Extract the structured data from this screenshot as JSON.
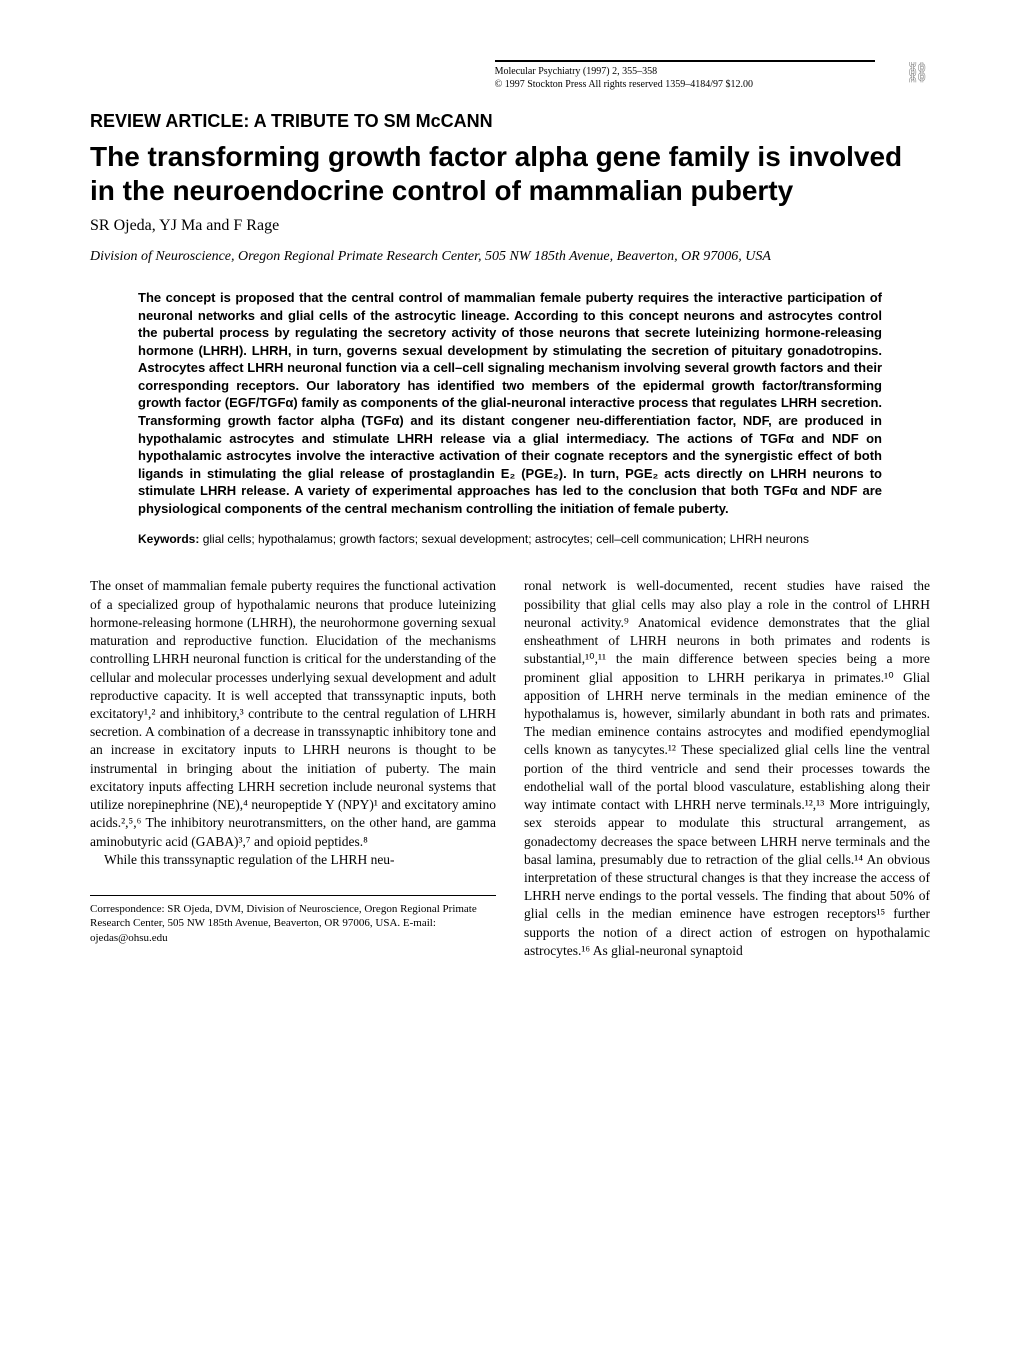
{
  "header": {
    "journal": "Molecular Psychiatry (1997) 2, 355–358",
    "copyright": "© 1997 Stockton Press  All rights reserved 1359–4184/97 $12.00"
  },
  "section_label": "REVIEW ARTICLE: A TRIBUTE TO SM McCANN",
  "title": "The transforming growth factor alpha gene family is involved in the neuroendocrine control of mammalian puberty",
  "authors": "SR Ojeda, YJ Ma and F Rage",
  "affiliation": "Division of Neuroscience, Oregon Regional Primate Research Center, 505 NW 185th Avenue, Beaverton, OR 97006, USA",
  "abstract": "The concept is proposed that the central control of mammalian female puberty requires the interactive participation of neuronal networks and glial cells of the astrocytic lineage. According to this concept neurons and astrocytes control the pubertal process by regulating the secretory activity of those neurons that secrete luteinizing hormone-releasing hormone (LHRH). LHRH, in turn, governs sexual development by stimulating the secretion of pituitary gonadotropins. Astrocytes affect LHRH neuronal function via a cell–cell signaling mechanism involving several growth factors and their corresponding receptors. Our laboratory has identified two members of the epidermal growth factor/transforming growth factor (EGF/TGFα) family as components of the glial-neuronal interactive process that regulates LHRH secretion. Transforming growth factor alpha (TGFα) and its distant congener neu-differentiation factor, NDF, are produced in hypothalamic astrocytes and stimulate LHRH release via a glial intermediacy. The actions of TGFα and NDF on hypothalamic astrocytes involve the interactive activation of their cognate receptors and the synergistic effect of both ligands in stimulating the glial release of prostaglandin E₂ (PGE₂). In turn, PGE₂ acts directly on LHRH neurons to stimulate LHRH release. A variety of experimental approaches has led to the conclusion that both TGFα and NDF are physiological components of the central mechanism controlling the initiation of female puberty.",
  "keywords_label": "Keywords:",
  "keywords": " glial cells; hypothalamus; growth factors; sexual development; astrocytes; cell–cell communication; LHRH neurons",
  "body_left_p1": "The onset of mammalian female puberty requires the functional activation of a specialized group of hypothalamic neurons that produce luteinizing hormone-releasing hormone (LHRH), the neurohormone governing sexual maturation and reproductive function. Elucidation of the mechanisms controlling LHRH neuronal function is critical for the understanding of the cellular and molecular processes underlying sexual development and adult reproductive capacity. It is well accepted that transsynaptic inputs, both excitatory¹,² and inhibitory,³ contribute to the central regulation of LHRH secretion. A combination of a decrease in transsynaptic inhibitory tone and an increase in excitatory inputs to LHRH neurons is thought to be instrumental in bringing about the initiation of puberty. The main excitatory inputs affecting LHRH secretion include neuronal systems that utilize norepinephrine (NE),⁴ neuropeptide Y (NPY)¹ and excitatory amino acids.²,⁵,⁶ The inhibitory neurotransmitters, on the other hand, are gamma aminobutyric acid (GABA)³,⁷ and opioid peptides.⁸",
  "body_left_p2": "While this transsynaptic regulation of the LHRH neu-",
  "body_right_p1": "ronal network is well-documented, recent studies have raised the possibility that glial cells may also play a role in the control of LHRH neuronal activity.⁹ Anatomical evidence demonstrates that the glial ensheathment of LHRH neurons in both primates and rodents is substantial,¹⁰,¹¹ the main difference between species being a more prominent glial apposition to LHRH perikarya in primates.¹⁰ Glial apposition of LHRH nerve terminals in the median eminence of the hypothalamus is, however, similarly abundant in both rats and primates. The median eminence contains astrocytes and modified ependymoglial cells known as tanycytes.¹² These specialized glial cells line the ventral portion of the third ventricle and send their processes towards the endothelial wall of the portal blood vasculature, establishing along their way intimate contact with LHRH nerve terminals.¹²,¹³ More intriguingly, sex steroids appear to modulate this structural arrangement, as gonadectomy decreases the space between LHRH nerve terminals and the basal lamina, presumably due to retraction of the glial cells.¹⁴ An obvious interpretation of these structural changes is that they increase the access of LHRH nerve endings to the portal vessels. The finding that about 50% of glial cells in the median eminence have estrogen receptors¹⁵ further supports the notion of a direct action of estrogen on hypothalamic astrocytes.¹⁶ As glial-neuronal synaptoid",
  "correspondence": "Correspondence: SR Ojeda, DVM, Division of Neuroscience, Oregon Regional Primate Research Center, 505 NW 185th Avenue, Beaverton, OR 97006, USA. E-mail: ojedas@ohsu.edu"
}
